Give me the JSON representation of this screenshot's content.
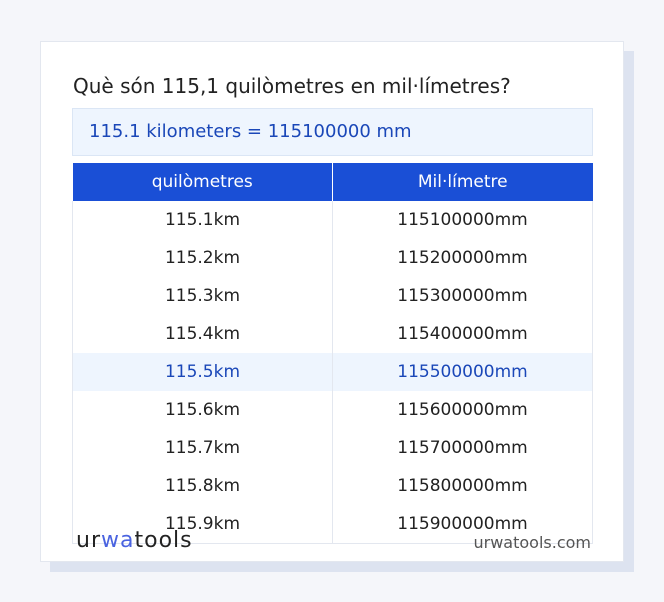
{
  "title": "Què són 115,1 quilòmetres en mil·límetres?",
  "result": "115.1 kilometers = 115100000 mm",
  "headers": [
    "quilòmetres",
    "Mil·límetre"
  ],
  "rows": [
    [
      "115.1km",
      "115100000mm"
    ],
    [
      "115.2km",
      "115200000mm"
    ],
    [
      "115.3km",
      "115300000mm"
    ],
    [
      "115.4km",
      "115400000mm"
    ],
    [
      "115.5km",
      "115500000mm"
    ],
    [
      "115.6km",
      "115600000mm"
    ],
    [
      "115.7km",
      "115700000mm"
    ],
    [
      "115.8km",
      "115800000mm"
    ],
    [
      "115.9km",
      "115900000mm"
    ]
  ],
  "highlighted_row": 4,
  "logo": {
    "a": "ur",
    "b": "wa",
    "c": "tools"
  },
  "site": "urwatools.com",
  "colors": {
    "accent": "#1a4fd6",
    "highlight": "#eef5fe"
  }
}
